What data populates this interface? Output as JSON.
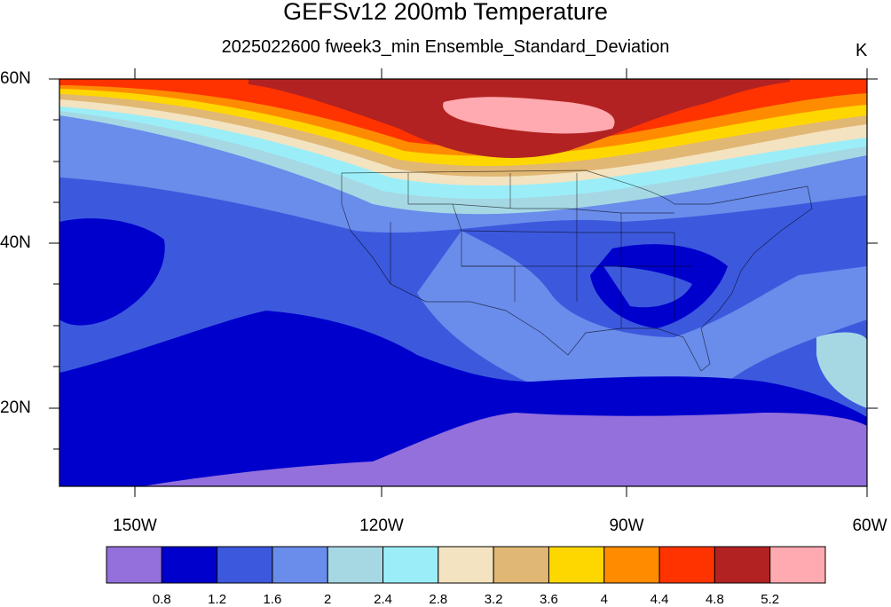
{
  "title": "GEFSv12 200mb Temperature",
  "subtitle": "2025022600 fweek3_min Ensemble_Standard_Deviation",
  "units": "K",
  "lat_labels": [
    "60N",
    "40N",
    "20N"
  ],
  "lon_labels": [
    "150W",
    "120W",
    "90W",
    "60W"
  ],
  "colorbar": {
    "labels": [
      "0.8",
      "1.2",
      "1.6",
      "2",
      "2.4",
      "2.8",
      "3.2",
      "3.6",
      "4",
      "4.4",
      "4.8",
      "5.2"
    ],
    "colors": [
      "#9370db",
      "#0000cd",
      "#3c59de",
      "#6a8ceb",
      "#a6d8e4",
      "#9beef8",
      "#f3e3c0",
      "#e1b774",
      "#ffd700",
      "#ff8c00",
      "#ff3300",
      "#b22222",
      "#ffa9b0"
    ]
  },
  "chart_data": {
    "type": "heatmap",
    "title": "GEFSv12 200mb Temperature",
    "subtitle": "2025022600 fweek3_min Ensemble_Standard_Deviation",
    "units": "K",
    "lat_range": [
      10,
      60
    ],
    "lon_range": [
      -160,
      -60
    ],
    "levels": [
      0.8,
      1.2,
      1.6,
      2,
      2.4,
      2.8,
      3.2,
      3.6,
      4,
      4.4,
      4.8,
      5.2
    ]
  }
}
